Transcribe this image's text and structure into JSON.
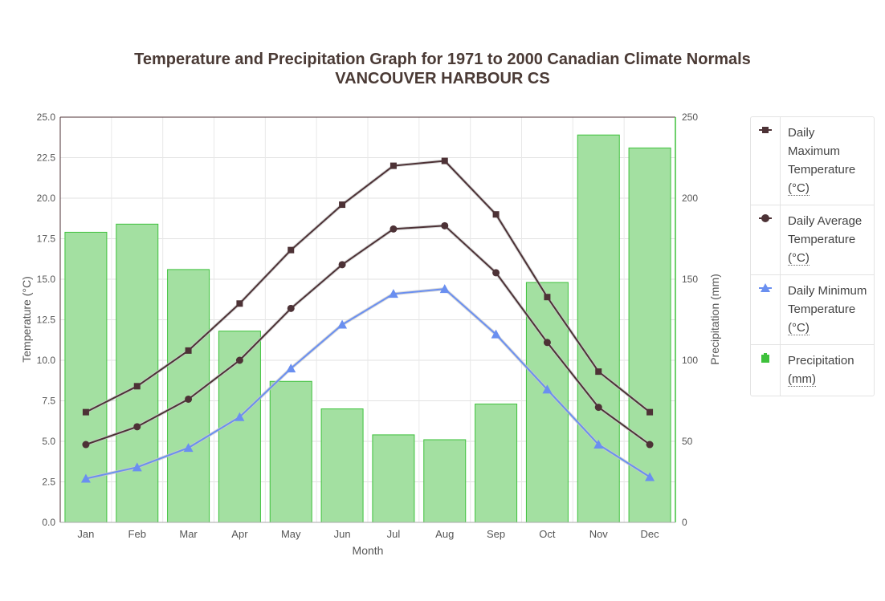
{
  "chart_data": {
    "type": "bar+line",
    "title": "Temperature and Precipitation Graph for 1971 to 2000 Canadian Climate Normals",
    "subtitle": "VANCOUVER HARBOUR CS",
    "xlabel": "Month",
    "ylabel_left": "Temperature (°C)",
    "ylabel_right": "Precipitation (mm)",
    "ylim_left": [
      0,
      25
    ],
    "ylim_right": [
      0,
      250
    ],
    "left_ticks": [
      "0.0",
      "2.5",
      "5.0",
      "7.5",
      "10.0",
      "12.5",
      "15.0",
      "17.5",
      "20.0",
      "22.5",
      "25.0"
    ],
    "right_ticks": [
      "0",
      "50",
      "100",
      "150",
      "200",
      "250"
    ],
    "categories": [
      "Jan",
      "Feb",
      "Mar",
      "Apr",
      "May",
      "Jun",
      "Jul",
      "Aug",
      "Sep",
      "Oct",
      "Nov",
      "Dec"
    ],
    "grid": true,
    "legend_position": "right",
    "series": [
      {
        "name": "Daily Maximum Temperature",
        "unit": "(°C)",
        "type": "line",
        "axis": "left",
        "marker": "square",
        "color": "#4d3236",
        "values": [
          6.8,
          8.4,
          10.6,
          13.5,
          16.8,
          19.6,
          22.0,
          22.3,
          19.0,
          13.9,
          9.3,
          6.8
        ]
      },
      {
        "name": "Daily Average Temperature",
        "unit": "(°C)",
        "type": "line",
        "axis": "left",
        "marker": "circle",
        "color": "#4d3236",
        "values": [
          4.8,
          5.9,
          7.6,
          10.0,
          13.2,
          15.9,
          18.1,
          18.3,
          15.4,
          11.1,
          7.1,
          4.8
        ]
      },
      {
        "name": "Daily Minimum Temperature",
        "unit": "(°C)",
        "type": "line",
        "axis": "left",
        "marker": "triangle",
        "color": "#6a8ff0",
        "values": [
          2.7,
          3.4,
          4.6,
          6.5,
          9.5,
          12.2,
          14.1,
          14.4,
          11.6,
          8.2,
          4.8,
          2.8
        ]
      },
      {
        "name": "Precipitation",
        "unit": "(mm)",
        "type": "bar",
        "axis": "right",
        "color": "#a3e0a1",
        "border": "#3ec13c",
        "values": [
          179,
          184,
          156,
          118,
          87,
          70,
          54,
          51,
          73,
          148,
          239,
          231
        ]
      }
    ]
  }
}
